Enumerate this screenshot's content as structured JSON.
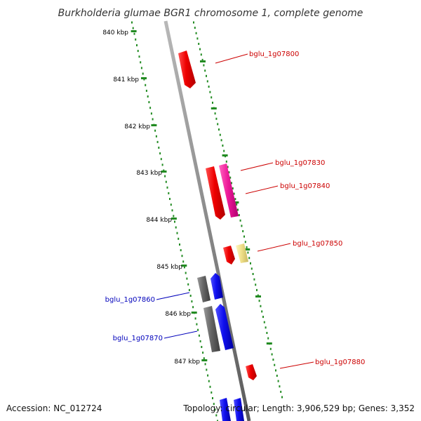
{
  "title": "Burkholderia glumae BGR1 chromosome 1, complete genome",
  "footer": {
    "accession": "Accession: NC_012724",
    "summary": "Topology: circular; Length: 3,906,529 bp; Genes: 3,352"
  },
  "colors": {
    "backbone": "#8a8a8a",
    "tick": "#228b22",
    "forward_label": "#cc0000",
    "reverse_label": "#0000bb",
    "red": "#ee0000",
    "magenta": "#ee1a99",
    "yellow": "#f0e08a",
    "blue": "#1010ee",
    "gray": "#666666"
  },
  "kbp_labels": [
    "840 kbp",
    "841 kbp",
    "842 kbp",
    "843 kbp",
    "844 kbp",
    "845 kbp",
    "846 kbp",
    "847 kbp"
  ],
  "gene_labels": [
    "bglu_1g07800",
    "bglu_1g07830",
    "bglu_1g07840",
    "bglu_1g07850",
    "bglu_1g07860",
    "bglu_1g07870",
    "bglu_1g07880"
  ]
}
